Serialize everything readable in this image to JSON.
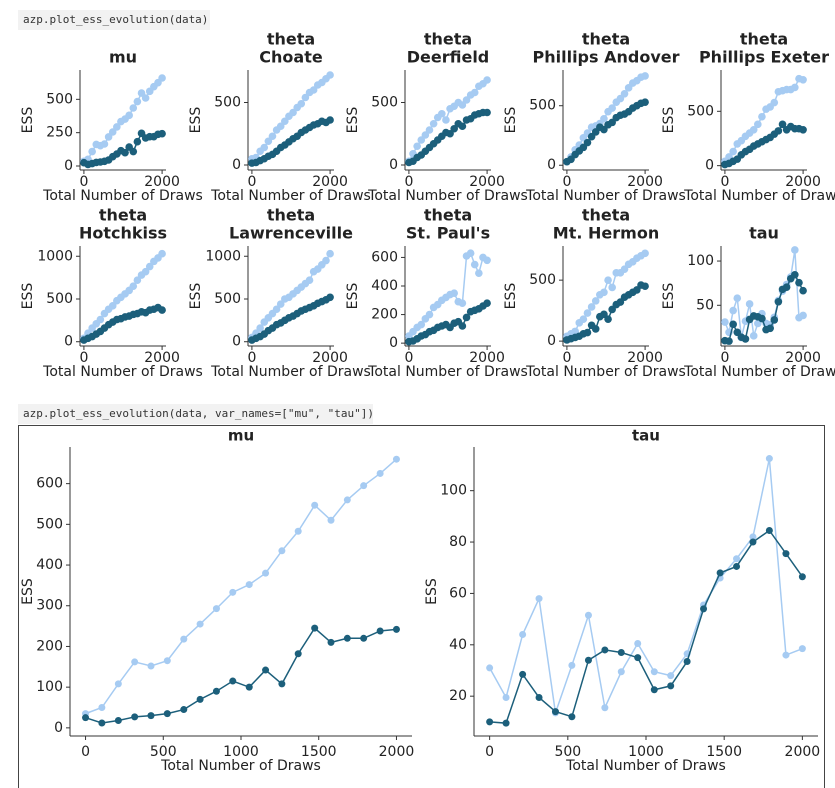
{
  "cells": [
    {
      "code": "azp.plot_ess_evolution(data)"
    },
    {
      "code": "azp.plot_ess_evolution(data, var_names=[\"mu\", \"tau\"])"
    }
  ],
  "chart_data": [
    {
      "type": "line",
      "title": [
        "mu"
      ],
      "xlabel": "Total Number of Draws",
      "ylabel": "ESS",
      "xlim": [
        -100,
        2100
      ],
      "xticks": [
        0,
        2000
      ],
      "ylim": [
        -30,
        720
      ],
      "yticks": [
        0,
        250,
        500
      ],
      "x": [
        0,
        105,
        211,
        316,
        421,
        526,
        632,
        737,
        842,
        947,
        1053,
        1158,
        1263,
        1368,
        1474,
        1579,
        1684,
        1789,
        1895,
        2000
      ],
      "series": [
        {
          "color": "#a6cbf2",
          "values": [
            35,
            50,
            108,
            162,
            152,
            165,
            218,
            255,
            293,
            333,
            352,
            380,
            435,
            483,
            547,
            510,
            560,
            595,
            625,
            660
          ]
        },
        {
          "color": "#1c5f7b",
          "values": [
            25,
            12,
            18,
            27,
            30,
            35,
            45,
            70,
            90,
            115,
            100,
            142,
            108,
            182,
            245,
            210,
            220,
            220,
            238,
            242
          ]
        }
      ]
    },
    {
      "type": "line",
      "title": [
        "theta",
        "Choate"
      ],
      "xlabel": "Total Number of Draws",
      "ylabel": "ESS",
      "xlim": [
        -100,
        2100
      ],
      "xticks": [
        0,
        2000
      ],
      "ylim": [
        -40,
        760
      ],
      "yticks": [
        0,
        500
      ],
      "x": [
        0,
        105,
        211,
        316,
        421,
        526,
        632,
        737,
        842,
        947,
        1053,
        1158,
        1263,
        1368,
        1474,
        1579,
        1684,
        1789,
        1895,
        2000
      ],
      "series": [
        {
          "color": "#a6cbf2",
          "values": [
            50,
            60,
            110,
            140,
            190,
            230,
            280,
            310,
            350,
            390,
            420,
            460,
            490,
            540,
            580,
            600,
            640,
            660,
            690,
            720
          ]
        },
        {
          "color": "#1c5f7b",
          "values": [
            15,
            20,
            35,
            50,
            70,
            85,
            110,
            140,
            160,
            185,
            210,
            230,
            260,
            280,
            300,
            320,
            330,
            350,
            340,
            360
          ]
        }
      ]
    },
    {
      "type": "line",
      "title": [
        "theta",
        "Deerfield"
      ],
      "xlabel": "Total Number of Draws",
      "ylabel": "ESS",
      "xlim": [
        -100,
        2100
      ],
      "xticks": [
        0,
        2000
      ],
      "ylim": [
        -40,
        760
      ],
      "yticks": [
        0,
        500
      ],
      "x": [
        0,
        105,
        211,
        316,
        421,
        526,
        632,
        737,
        842,
        947,
        1053,
        1158,
        1263,
        1368,
        1474,
        1579,
        1684,
        1789,
        1895,
        2000
      ],
      "series": [
        {
          "color": "#a6cbf2",
          "values": [
            30,
            90,
            150,
            200,
            240,
            280,
            330,
            380,
            410,
            360,
            450,
            470,
            500,
            480,
            520,
            560,
            580,
            630,
            650,
            680
          ]
        },
        {
          "color": "#1c5f7b",
          "values": [
            20,
            30,
            60,
            80,
            110,
            140,
            170,
            200,
            230,
            260,
            250,
            290,
            330,
            310,
            360,
            370,
            400,
            410,
            420,
            420
          ]
        }
      ]
    },
    {
      "type": "line",
      "title": [
        "theta",
        "Phillips Andover"
      ],
      "xlabel": "Total Number of Draws",
      "ylabel": "ESS",
      "xlim": [
        -100,
        2100
      ],
      "xticks": [
        0,
        2000
      ],
      "ylim": [
        -40,
        800
      ],
      "yticks": [
        0,
        500
      ],
      "x": [
        0,
        105,
        211,
        316,
        421,
        526,
        632,
        737,
        842,
        947,
        1053,
        1158,
        1263,
        1368,
        1474,
        1579,
        1684,
        1789,
        1895,
        2000
      ],
      "series": [
        {
          "color": "#a6cbf2",
          "values": [
            30,
            70,
            130,
            170,
            230,
            270,
            320,
            330,
            350,
            390,
            450,
            480,
            530,
            560,
            600,
            650,
            690,
            710,
            740,
            750
          ]
        },
        {
          "color": "#1c5f7b",
          "values": [
            30,
            50,
            90,
            120,
            150,
            190,
            240,
            280,
            320,
            300,
            340,
            360,
            400,
            420,
            430,
            450,
            480,
            500,
            520,
            530
          ]
        }
      ]
    },
    {
      "type": "line",
      "title": [
        "theta",
        "Phillips Exeter"
      ],
      "xlabel": "Total Number of Draws",
      "ylabel": "ESS",
      "xlim": [
        -100,
        2100
      ],
      "xticks": [
        0,
        2000
      ],
      "ylim": [
        -40,
        880
      ],
      "yticks": [
        0,
        500
      ],
      "x": [
        0,
        105,
        211,
        316,
        421,
        526,
        632,
        737,
        842,
        947,
        1053,
        1158,
        1263,
        1368,
        1474,
        1579,
        1684,
        1789,
        1895,
        2000
      ],
      "series": [
        {
          "color": "#a6cbf2",
          "values": [
            40,
            80,
            130,
            200,
            230,
            270,
            300,
            330,
            380,
            450,
            520,
            540,
            580,
            680,
            690,
            700,
            700,
            720,
            800,
            790
          ]
        },
        {
          "color": "#1c5f7b",
          "values": [
            10,
            20,
            40,
            60,
            100,
            130,
            150,
            180,
            200,
            220,
            240,
            260,
            290,
            320,
            380,
            330,
            360,
            340,
            340,
            330
          ]
        }
      ]
    },
    {
      "type": "line",
      "title": [
        "theta",
        "Hotchkiss"
      ],
      "xlabel": "Total Number of Draws",
      "ylabel": "ESS",
      "xlim": [
        -100,
        2100
      ],
      "xticks": [
        0,
        2000
      ],
      "ylim": [
        -50,
        1120
      ],
      "yticks": [
        0,
        500,
        1000
      ],
      "x": [
        0,
        105,
        211,
        316,
        421,
        526,
        632,
        737,
        842,
        947,
        1053,
        1158,
        1263,
        1368,
        1474,
        1579,
        1684,
        1789,
        1895,
        2000
      ],
      "series": [
        {
          "color": "#a6cbf2",
          "values": [
            40,
            100,
            160,
            210,
            260,
            330,
            380,
            420,
            480,
            520,
            560,
            600,
            650,
            720,
            780,
            820,
            880,
            940,
            980,
            1030
          ]
        },
        {
          "color": "#1c5f7b",
          "values": [
            20,
            40,
            60,
            90,
            120,
            160,
            200,
            230,
            260,
            270,
            290,
            300,
            320,
            330,
            350,
            340,
            370,
            380,
            400,
            370
          ]
        }
      ]
    },
    {
      "type": "line",
      "title": [
        "theta",
        "Lawrenceville"
      ],
      "xlabel": "Total Number of Draws",
      "ylabel": "ESS",
      "xlim": [
        -100,
        2100
      ],
      "xticks": [
        0,
        2000
      ],
      "ylim": [
        -50,
        1120
      ],
      "yticks": [
        0,
        500,
        1000
      ],
      "x": [
        0,
        105,
        211,
        316,
        421,
        526,
        632,
        737,
        842,
        947,
        1053,
        1158,
        1263,
        1368,
        1474,
        1579,
        1684,
        1789,
        1895,
        2000
      ],
      "series": [
        {
          "color": "#a6cbf2",
          "values": [
            50,
            100,
            160,
            230,
            280,
            330,
            380,
            440,
            500,
            520,
            560,
            600,
            640,
            680,
            720,
            820,
            850,
            900,
            950,
            1030
          ]
        },
        {
          "color": "#1c5f7b",
          "values": [
            20,
            40,
            60,
            90,
            130,
            160,
            200,
            220,
            250,
            280,
            300,
            330,
            360,
            380,
            400,
            420,
            450,
            470,
            490,
            520
          ]
        }
      ]
    },
    {
      "type": "line",
      "title": [
        "theta",
        "St. Paul's"
      ],
      "xlabel": "Total Number of Draws",
      "ylabel": "ESS",
      "xlim": [
        -100,
        2100
      ],
      "xticks": [
        0,
        2000
      ],
      "ylim": [
        -20,
        680
      ],
      "yticks": [
        0,
        200,
        400,
        600
      ],
      "x": [
        0,
        105,
        211,
        316,
        421,
        526,
        632,
        737,
        842,
        947,
        1053,
        1158,
        1263,
        1368,
        1474,
        1579,
        1684,
        1789,
        1895,
        2000
      ],
      "series": [
        {
          "color": "#a6cbf2",
          "values": [
            50,
            80,
            110,
            130,
            170,
            200,
            250,
            270,
            300,
            320,
            340,
            350,
            290,
            280,
            610,
            630,
            550,
            490,
            600,
            580
          ]
        },
        {
          "color": "#1c5f7b",
          "values": [
            10,
            15,
            30,
            50,
            60,
            80,
            90,
            110,
            120,
            130,
            110,
            140,
            150,
            120,
            180,
            220,
            230,
            240,
            260,
            280
          ]
        }
      ]
    },
    {
      "type": "line",
      "title": [
        "theta",
        "Mt. Hermon"
      ],
      "xlabel": "Total Number of Draws",
      "ylabel": "ESS",
      "xlim": [
        -100,
        2100
      ],
      "xticks": [
        0,
        2000
      ],
      "ylim": [
        -40,
        780
      ],
      "yticks": [
        0,
        500
      ],
      "x": [
        0,
        105,
        211,
        316,
        421,
        526,
        632,
        737,
        842,
        947,
        1053,
        1158,
        1263,
        1368,
        1474,
        1579,
        1684,
        1789,
        1895,
        2000
      ],
      "series": [
        {
          "color": "#a6cbf2",
          "values": [
            40,
            60,
            80,
            150,
            180,
            230,
            280,
            330,
            380,
            400,
            500,
            440,
            560,
            560,
            590,
            630,
            650,
            680,
            700,
            720
          ]
        },
        {
          "color": "#1c5f7b",
          "values": [
            10,
            20,
            30,
            40,
            60,
            70,
            130,
            100,
            200,
            220,
            180,
            260,
            300,
            320,
            360,
            380,
            400,
            420,
            460,
            450
          ]
        }
      ]
    },
    {
      "type": "line",
      "title": [
        "tau"
      ],
      "xlabel": "Total Number of Draws",
      "ylabel": "ESS",
      "xlim": [
        -100,
        2100
      ],
      "xticks": [
        0,
        2000
      ],
      "ylim": [
        4,
        117
      ],
      "yticks": [
        50,
        100
      ],
      "x": [
        0,
        105,
        211,
        316,
        421,
        526,
        632,
        737,
        842,
        947,
        1053,
        1158,
        1263,
        1368,
        1474,
        1579,
        1684,
        1789,
        1895,
        2000
      ],
      "series": [
        {
          "color": "#a6cbf2",
          "values": [
            31,
            19.5,
            44,
            58,
            13.5,
            32,
            51.5,
            15.5,
            29.5,
            40.5,
            29.5,
            28,
            36.5,
            55.5,
            66,
            73.5,
            82,
            112.5,
            36,
            38.5
          ]
        },
        {
          "color": "#1c5f7b",
          "values": [
            10,
            9.5,
            28.5,
            19.5,
            14,
            12,
            34,
            38,
            37,
            35,
            22.5,
            24,
            33.5,
            54,
            68,
            70.5,
            80,
            84.5,
            75.5,
            66.5
          ]
        }
      ]
    },
    {
      "type": "line",
      "title": [
        "mu"
      ],
      "xlabel": "Total Number of Draws",
      "ylabel": "ESS",
      "xlim": [
        -100,
        2100
      ],
      "xticks": [
        0,
        500,
        1000,
        1500,
        2000
      ],
      "ylim": [
        -20,
        690
      ],
      "yticks": [
        0,
        100,
        200,
        300,
        400,
        500,
        600
      ],
      "x": [
        0,
        105,
        211,
        316,
        421,
        526,
        632,
        737,
        842,
        947,
        1053,
        1158,
        1263,
        1368,
        1474,
        1579,
        1684,
        1789,
        1895,
        2000
      ],
      "series": [
        {
          "color": "#a6cbf2",
          "values": [
            35,
            50,
            108,
            162,
            152,
            165,
            218,
            255,
            293,
            333,
            352,
            380,
            435,
            483,
            547,
            510,
            560,
            595,
            625,
            660
          ]
        },
        {
          "color": "#1c5f7b",
          "values": [
            25,
            12,
            18,
            27,
            30,
            35,
            45,
            70,
            90,
            115,
            100,
            142,
            108,
            182,
            245,
            210,
            220,
            220,
            238,
            242
          ]
        }
      ]
    },
    {
      "type": "line",
      "title": [
        "tau"
      ],
      "xlabel": "Total Number of Draws",
      "ylabel": "ESS",
      "xlim": [
        -100,
        2100
      ],
      "xticks": [
        0,
        500,
        1000,
        1500,
        2000
      ],
      "ylim": [
        4.5,
        117
      ],
      "yticks": [
        20,
        40,
        60,
        80,
        100
      ],
      "x": [
        0,
        105,
        211,
        316,
        421,
        526,
        632,
        737,
        842,
        947,
        1053,
        1158,
        1263,
        1368,
        1474,
        1579,
        1684,
        1789,
        1895,
        2000
      ],
      "series": [
        {
          "color": "#a6cbf2",
          "values": [
            31,
            19.5,
            44,
            58,
            13.5,
            32,
            51.5,
            15.5,
            29.5,
            40.5,
            29.5,
            28,
            36.5,
            55.5,
            66,
            73.5,
            82,
            112.5,
            36,
            38.5
          ]
        },
        {
          "color": "#1c5f7b",
          "values": [
            10,
            9.5,
            28.5,
            19.5,
            14,
            12,
            34,
            38,
            37,
            35,
            22.5,
            24,
            33.5,
            54,
            68,
            70.5,
            80,
            84.5,
            75.5,
            66.5
          ]
        }
      ]
    }
  ]
}
